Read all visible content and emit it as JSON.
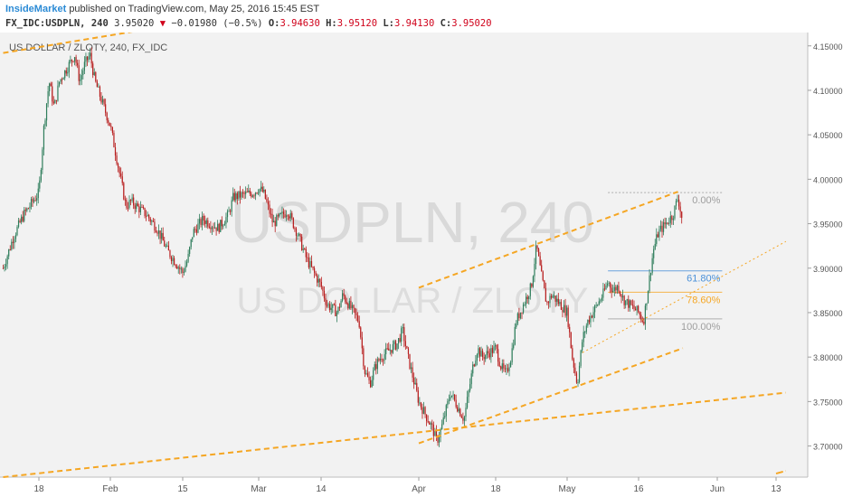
{
  "header": {
    "author": "InsideMarket",
    "published_text": "published on TradingView.com, May 25, 2016 15:45 EST",
    "symbol_interval": "FX_IDC:USDPLN, 240",
    "price": "3.95020",
    "change_arrow": "▼",
    "change": "−0.01980 (−0.5%)",
    "o_label": "O:",
    "o_value": "3.94630",
    "h_label": "H:",
    "h_value": "3.95120",
    "l_label": "L:",
    "l_value": "3.94130",
    "c_label": "C:",
    "c_value": "3.95020"
  },
  "colors": {
    "background": "#f2f2f2",
    "up_candle": "#2e7d5b",
    "down_candle": "#b71c1c",
    "trendline": "#f5a623",
    "fib_line": "#9e9e9e",
    "fib_0": "#9e9e9e",
    "fib_618": "#4a90d9",
    "fib_786": "#f5a623",
    "fib_100": "#9e9e9e",
    "watermark": "#d9d9d9"
  },
  "chart_data": {
    "type": "candlestick",
    "title": "US DOLLAR / ZLOTY, 240, FX_IDC",
    "watermark_main": "USDPLN, 240",
    "watermark_sub": "US DOLLAR / ZLOTY",
    "ylim": [
      3.665,
      4.165
    ],
    "y_ticks": [
      "4.15000",
      "4.10000",
      "4.05000",
      "4.00000",
      "3.95000",
      "3.90000",
      "3.85000",
      "3.80000",
      "3.75000",
      "3.70000"
    ],
    "x_ticks": [
      "18",
      "Feb",
      "15",
      "Mar",
      "14",
      "Apr",
      "18",
      "May",
      "16",
      "Jun",
      "13"
    ],
    "x_tick_dates": [
      "2016-01-18",
      "2016-02-01",
      "2016-02-15",
      "2016-03-01",
      "2016-03-14",
      "2016-04-01",
      "2016-04-18",
      "2016-05-02",
      "2016-05-16",
      "2016-06-01",
      "2016-06-13"
    ],
    "grid": false,
    "price_path": [
      [
        "2016-01-11",
        3.9
      ],
      [
        "2016-01-13",
        3.935
      ],
      [
        "2016-01-15",
        3.96
      ],
      [
        "2016-01-18",
        3.985
      ],
      [
        "2016-01-19",
        4.06
      ],
      [
        "2016-01-20",
        4.11
      ],
      [
        "2016-01-21",
        4.08
      ],
      [
        "2016-01-22",
        4.11
      ],
      [
        "2016-01-25",
        4.14
      ],
      [
        "2016-01-26",
        4.11
      ],
      [
        "2016-01-27",
        4.13
      ],
      [
        "2016-01-28",
        4.14
      ],
      [
        "2016-01-29",
        4.11
      ],
      [
        "2016-02-01",
        4.06
      ],
      [
        "2016-02-03",
        4.0
      ],
      [
        "2016-02-04",
        3.97
      ],
      [
        "2016-02-05",
        3.975
      ],
      [
        "2016-02-08",
        3.96
      ],
      [
        "2016-02-10",
        3.945
      ],
      [
        "2016-02-12",
        3.92
      ],
      [
        "2016-02-15",
        3.895
      ],
      [
        "2016-02-16",
        3.91
      ],
      [
        "2016-02-17",
        3.94
      ],
      [
        "2016-02-19",
        3.955
      ],
      [
        "2016-02-22",
        3.945
      ],
      [
        "2016-02-24",
        3.96
      ],
      [
        "2016-02-25",
        3.98
      ],
      [
        "2016-02-29",
        3.985
      ],
      [
        "2016-03-01",
        3.99
      ],
      [
        "2016-03-02",
        3.985
      ],
      [
        "2016-03-04",
        3.95
      ],
      [
        "2016-03-07",
        3.965
      ],
      [
        "2016-03-09",
        3.94
      ],
      [
        "2016-03-11",
        3.91
      ],
      [
        "2016-03-14",
        3.88
      ],
      [
        "2016-03-15",
        3.86
      ],
      [
        "2016-03-17",
        3.85
      ],
      [
        "2016-03-18",
        3.87
      ],
      [
        "2016-03-21",
        3.84
      ],
      [
        "2016-03-22",
        3.785
      ],
      [
        "2016-03-23",
        3.77
      ],
      [
        "2016-03-24",
        3.79
      ],
      [
        "2016-03-25",
        3.8
      ],
      [
        "2016-03-28",
        3.815
      ],
      [
        "2016-03-29",
        3.83
      ],
      [
        "2016-03-30",
        3.8
      ],
      [
        "2016-03-31",
        3.775
      ],
      [
        "2016-04-01",
        3.75
      ],
      [
        "2016-04-04",
        3.72
      ],
      [
        "2016-04-05",
        3.705
      ],
      [
        "2016-04-06",
        3.72
      ],
      [
        "2016-04-07",
        3.74
      ],
      [
        "2016-04-08",
        3.76
      ],
      [
        "2016-04-11",
        3.73
      ],
      [
        "2016-04-12",
        3.76
      ],
      [
        "2016-04-13",
        3.79
      ],
      [
        "2016-04-14",
        3.81
      ],
      [
        "2016-04-15",
        3.8
      ],
      [
        "2016-04-18",
        3.81
      ],
      [
        "2016-04-19",
        3.79
      ],
      [
        "2016-04-20",
        3.78
      ],
      [
        "2016-04-21",
        3.8
      ],
      [
        "2016-04-22",
        3.84
      ],
      [
        "2016-04-25",
        3.88
      ],
      [
        "2016-04-26",
        3.925
      ],
      [
        "2016-04-27",
        3.89
      ],
      [
        "2016-04-28",
        3.86
      ],
      [
        "2016-04-29",
        3.87
      ],
      [
        "2016-05-02",
        3.85
      ],
      [
        "2016-05-03",
        3.8
      ],
      [
        "2016-05-04",
        3.77
      ],
      [
        "2016-05-05",
        3.82
      ],
      [
        "2016-05-06",
        3.84
      ],
      [
        "2016-05-09",
        3.87
      ],
      [
        "2016-05-10",
        3.885
      ],
      [
        "2016-05-11",
        3.875
      ],
      [
        "2016-05-12",
        3.88
      ],
      [
        "2016-05-13",
        3.865
      ],
      [
        "2016-05-16",
        3.85
      ],
      [
        "2016-05-17",
        3.84
      ],
      [
        "2016-05-18",
        3.88
      ],
      [
        "2016-05-19",
        3.92
      ],
      [
        "2016-05-20",
        3.94
      ],
      [
        "2016-05-23",
        3.96
      ],
      [
        "2016-05-24",
        3.98
      ],
      [
        "2016-05-25",
        3.95
      ]
    ],
    "trendlines": [
      [
        [
          "2016-01-11",
          4.142
        ],
        [
          "2016-02-20",
          4.18
        ]
      ],
      [
        [
          "2016-01-11",
          3.665
        ],
        [
          "2016-06-15",
          3.76
        ]
      ],
      [
        [
          "2016-04-01",
          3.878
        ],
        [
          "2016-05-24",
          3.986
        ]
      ],
      [
        [
          "2016-04-01",
          3.703
        ],
        [
          "2016-05-25",
          3.81
        ]
      ],
      [
        [
          "2016-05-05",
          3.805
        ],
        [
          "2016-06-15",
          3.93
        ]
      ],
      [
        [
          "2016-06-13",
          3.669
        ],
        [
          "2016-06-15",
          3.672
        ]
      ]
    ],
    "fibonacci": {
      "levels": [
        {
          "label": "0.00%",
          "value": 3.985
        },
        {
          "label": "61.80%",
          "value": 3.897
        },
        {
          "label": "78.60%",
          "value": 3.873
        },
        {
          "label": "100.00%",
          "value": 3.843
        }
      ],
      "x_start": "2016-05-10",
      "x_end": "2016-06-02"
    }
  }
}
